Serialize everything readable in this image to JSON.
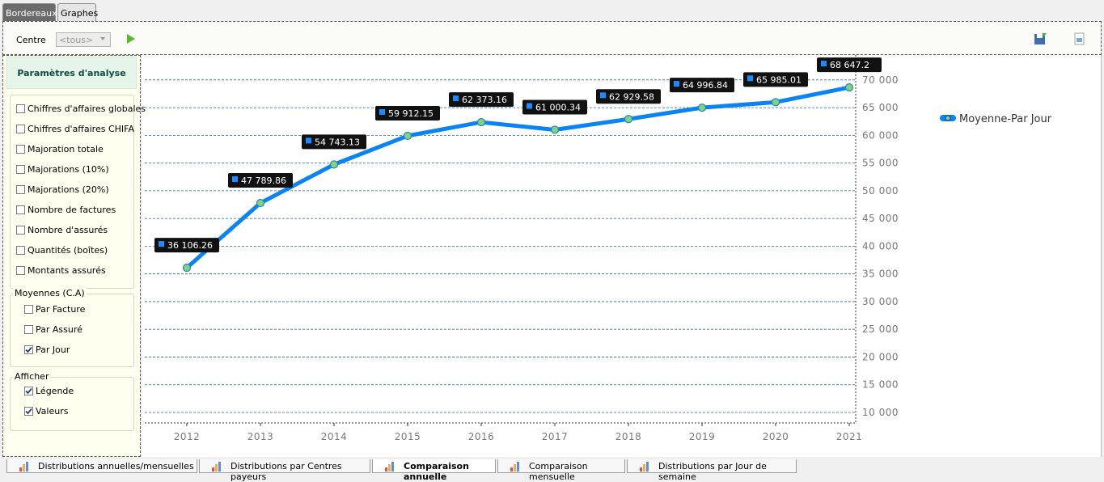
{
  "tabs": [
    "Bordereaux",
    "Graphes"
  ],
  "active_tab": 1,
  "toolbar": {
    "centre_label": "Centre",
    "centre_value": "<tous>"
  },
  "panel": {
    "title": "Paramètres d'analyse",
    "groups": [
      {
        "items": [
          {
            "label": "Chiffres d'affaires globales",
            "checked": false
          },
          {
            "label": "Chiffres d'affaires CHIFA",
            "checked": false
          },
          {
            "label": "Majoration totale",
            "checked": false
          },
          {
            "label": "Majorations (10%)",
            "checked": false
          },
          {
            "label": "Majorations (20%)",
            "checked": false
          },
          {
            "label": "Nombre de factures",
            "checked": false
          },
          {
            "label": "Nombre d'assurés",
            "checked": false
          },
          {
            "label": "Quantités (boîtes)",
            "checked": false
          },
          {
            "label": "Montants assurés",
            "checked": false
          }
        ]
      },
      {
        "title": "Moyennes (C.A)",
        "items": [
          {
            "label": "Par Facture",
            "checked": false
          },
          {
            "label": "Par Assuré",
            "checked": false
          },
          {
            "label": "Par Jour",
            "checked": true
          }
        ]
      },
      {
        "title": "Afficher",
        "items": [
          {
            "label": "Légende",
            "checked": true
          },
          {
            "label": "Valeurs",
            "checked": true
          }
        ]
      }
    ]
  },
  "chart_data": {
    "type": "line",
    "categories": [
      "2012",
      "2013",
      "2014",
      "2015",
      "2016",
      "2017",
      "2018",
      "2019",
      "2020",
      "2021"
    ],
    "series": [
      {
        "name": "Moyenne-Par Jour",
        "color": "#0a84f5",
        "values": [
          36106.26,
          47789.86,
          54743.13,
          59912.15,
          62373.16,
          61000.34,
          62929.58,
          64996.84,
          65985.01,
          68647.2
        ],
        "value_labels": [
          "36 106.26",
          "47 789.86",
          "54 743.13",
          "59 912.15",
          "62 373.16",
          "61 000.34",
          "62 929.58",
          "64 996.84",
          "65 985.01",
          "68 647.2"
        ]
      }
    ],
    "ylim": [
      8100,
      74500
    ],
    "yticks": [
      {
        "value": 10000,
        "label": "10 000"
      },
      {
        "value": 15000,
        "label": "15 000"
      },
      {
        "value": 20000,
        "label": "20 000"
      },
      {
        "value": 25000,
        "label": "25 000"
      },
      {
        "value": 30000,
        "label": "30 000"
      },
      {
        "value": 35000,
        "label": "35 000"
      },
      {
        "value": 40000,
        "label": "40 000"
      },
      {
        "value": 45000,
        "label": "45 000"
      },
      {
        "value": 50000,
        "label": "50 000"
      },
      {
        "value": 55000,
        "label": "55 000"
      },
      {
        "value": 60000,
        "label": "60 000"
      },
      {
        "value": 65000,
        "label": "65 000"
      },
      {
        "value": 70000,
        "label": "70 000"
      }
    ],
    "grid": true,
    "y_axis_side": "right",
    "legend": "right",
    "show_values": true
  },
  "bottom_tabs": [
    "Distributions annuelles/mensuelles",
    "Distributions par Centres payeurs",
    "Comparaison annuelle",
    "Comparaison mensuelle",
    "Distributions par Jour de semaine"
  ],
  "active_bottom_tab": 2
}
